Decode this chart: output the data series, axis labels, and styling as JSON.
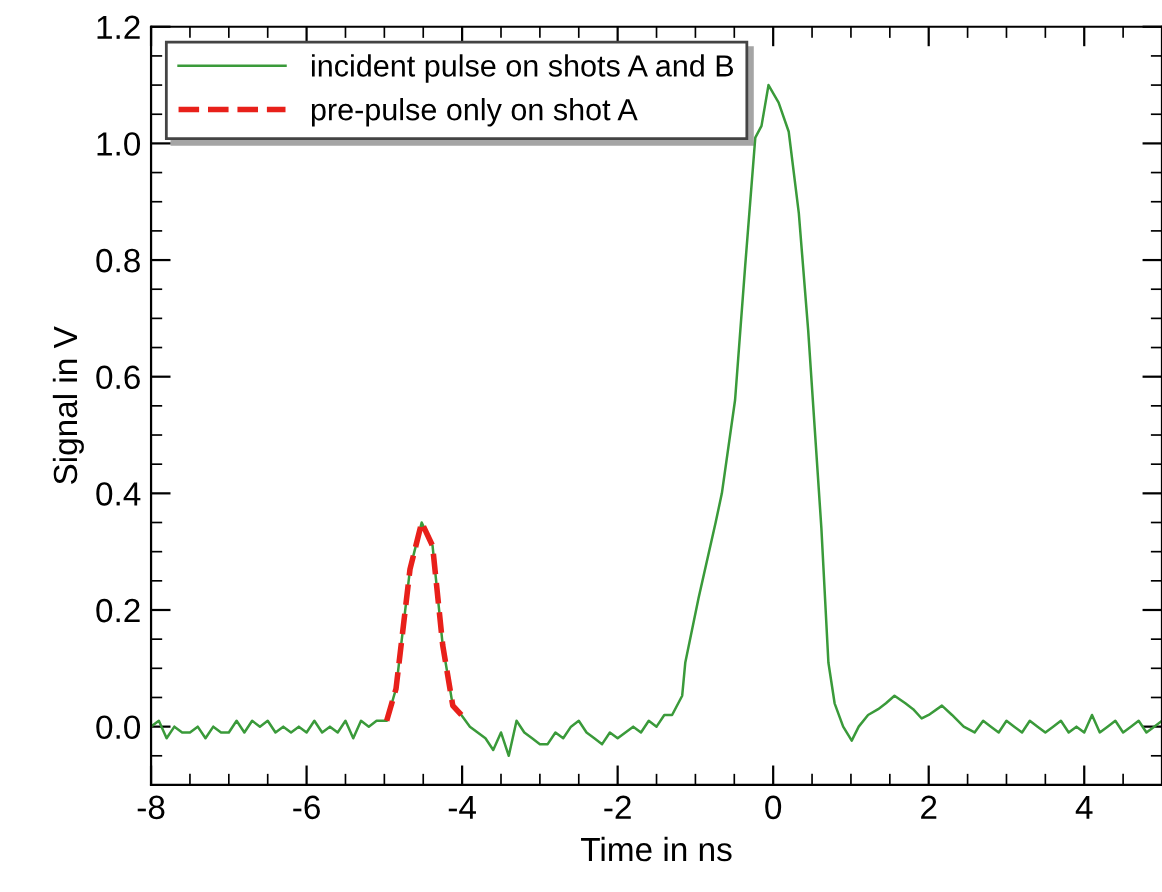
{
  "chart_data": {
    "type": "line",
    "xlabel": "Time in ns",
    "ylabel": "Signal in V",
    "xlim": [
      -8,
      5
    ],
    "ylim": [
      -0.1,
      1.2
    ],
    "xticks": [
      -8,
      -6,
      -4,
      -2,
      0,
      2,
      4
    ],
    "yticks": [
      {
        "value": 0,
        "label": "0.0"
      },
      0.2,
      0.4,
      0.6,
      0.8,
      {
        "value": 1,
        "label": "1.0"
      },
      1.2
    ],
    "legend": "top left",
    "grid": false,
    "marker": "none",
    "series": [
      {
        "name": "incident pulse on shots A and B",
        "color": "#3a9a3a",
        "line_style": "solid",
        "x": [
          -8.0,
          -7.9,
          -7.8,
          -7.7,
          -7.6,
          -7.5,
          -7.4,
          -7.3,
          -7.2,
          -7.1,
          -7.0,
          -6.9,
          -6.8,
          -6.7,
          -6.6,
          -6.5,
          -6.4,
          -6.3,
          -6.2,
          -6.1,
          -6.0,
          -5.9,
          -5.8,
          -5.7,
          -5.6,
          -5.5,
          -5.4,
          -5.3,
          -5.2,
          -5.1,
          -4.97,
          -4.85,
          -4.67,
          -4.52,
          -4.38,
          -4.25,
          -4.12,
          -4.01,
          -3.9,
          -3.8,
          -3.7,
          -3.6,
          -3.5,
          -3.4,
          -3.3,
          -3.2,
          -3.1,
          -3.0,
          -2.9,
          -2.8,
          -2.7,
          -2.6,
          -2.5,
          -2.4,
          -2.3,
          -2.2,
          -2.1,
          -2.0,
          -1.9,
          -1.8,
          -1.7,
          -1.6,
          -1.5,
          -1.4,
          -1.3,
          -1.17,
          -1.13,
          -0.96,
          -0.74,
          -0.66,
          -0.49,
          -0.36,
          -0.23,
          -0.15,
          -0.06,
          0.07,
          0.2,
          0.33,
          0.45,
          0.62,
          0.71,
          0.79,
          0.9,
          1.01,
          1.1,
          1.22,
          1.35,
          1.45,
          1.56,
          1.7,
          1.8,
          1.91,
          2.0,
          2.17,
          2.3,
          2.45,
          2.59,
          2.7,
          2.8,
          2.9,
          3.0,
          3.1,
          3.2,
          3.3,
          3.4,
          3.5,
          3.6,
          3.7,
          3.8,
          3.9,
          4.0,
          4.1,
          4.2,
          4.3,
          4.4,
          4.5,
          4.6,
          4.7,
          4.8,
          4.9,
          5.0
        ],
        "values": [
          0.0,
          0.01,
          -0.02,
          0.0,
          -0.01,
          -0.01,
          0.0,
          -0.02,
          0.0,
          -0.01,
          -0.01,
          0.01,
          -0.01,
          0.01,
          0.0,
          0.01,
          -0.01,
          0.0,
          -0.01,
          0.0,
          -0.01,
          0.01,
          -0.01,
          0.0,
          -0.01,
          0.01,
          -0.02,
          0.01,
          0.0,
          0.01,
          0.01,
          0.065,
          0.27,
          0.35,
          0.31,
          0.14,
          0.036,
          0.02,
          0.0,
          -0.01,
          -0.02,
          -0.04,
          -0.01,
          -0.05,
          0.01,
          -0.01,
          -0.02,
          -0.03,
          -0.03,
          -0.01,
          -0.02,
          0.0,
          0.01,
          -0.01,
          -0.02,
          -0.03,
          -0.01,
          -0.02,
          -0.01,
          0.0,
          -0.01,
          0.01,
          0.0,
          0.02,
          0.02,
          0.053,
          0.11,
          0.22,
          0.35,
          0.4,
          0.56,
          0.79,
          1.01,
          1.03,
          1.1,
          1.07,
          1.02,
          0.88,
          0.68,
          0.34,
          0.11,
          0.04,
          0.0,
          -0.024,
          0.0,
          0.02,
          0.03,
          0.04,
          0.053,
          0.04,
          0.03,
          0.014,
          0.02,
          0.036,
          0.02,
          0.0,
          -0.01,
          0.01,
          0.0,
          -0.01,
          0.01,
          0.0,
          -0.01,
          0.01,
          0.0,
          -0.01,
          0.0,
          0.01,
          -0.01,
          0.0,
          -0.01,
          0.02,
          -0.01,
          0.0,
          0.01,
          -0.01,
          0.0,
          0.01,
          -0.01,
          0.0,
          0.01
        ]
      },
      {
        "name": "pre-pulse only on shot A",
        "color": "#e8201a",
        "line_style": "dashed",
        "x": [
          -4.97,
          -4.85,
          -4.67,
          -4.52,
          -4.38,
          -4.25,
          -4.12,
          -4.01
        ],
        "values": [
          0.01,
          0.065,
          0.27,
          0.35,
          0.31,
          0.14,
          0.036,
          0.02
        ]
      }
    ]
  }
}
